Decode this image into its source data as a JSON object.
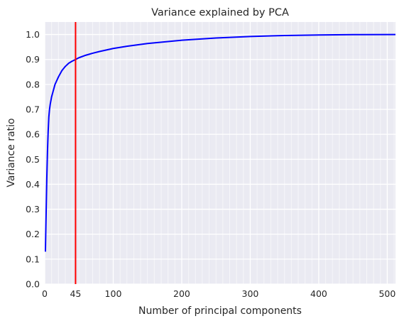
{
  "chart_data": {
    "type": "line",
    "title": "Variance explained by PCA",
    "xlabel": "Number of principal components",
    "ylabel": "Variance ratio",
    "xlim": [
      0,
      512
    ],
    "ylim": [
      0,
      1.05
    ],
    "xticks": [
      0,
      45,
      100,
      200,
      300,
      400,
      500
    ],
    "xtick_labels": [
      "0",
      "45",
      "100",
      "200",
      "300",
      "400",
      "500"
    ],
    "yticks": [
      0.0,
      0.1,
      0.2,
      0.3,
      0.4,
      0.5,
      0.6,
      0.7,
      0.8,
      0.9,
      1.0
    ],
    "ytick_labels": [
      "0.0",
      "0.1",
      "0.2",
      "0.3",
      "0.4",
      "0.5",
      "0.6",
      "0.7",
      "0.8",
      "0.9",
      "1.0"
    ],
    "grid": true,
    "background_color": "#eaeaf2",
    "series": [
      {
        "color": "#0000ff",
        "x": [
          1,
          2,
          3,
          4,
          5,
          6,
          7,
          8,
          10,
          12,
          15,
          20,
          25,
          30,
          35,
          40,
          45,
          50,
          60,
          70,
          80,
          100,
          120,
          150,
          200,
          250,
          300,
          350,
          400,
          450,
          512
        ],
        "y": [
          0.13,
          0.28,
          0.42,
          0.53,
          0.61,
          0.67,
          0.7,
          0.72,
          0.75,
          0.77,
          0.8,
          0.83,
          0.855,
          0.872,
          0.885,
          0.893,
          0.9,
          0.907,
          0.917,
          0.925,
          0.932,
          0.944,
          0.953,
          0.964,
          0.977,
          0.986,
          0.992,
          0.996,
          0.998,
          0.9995,
          1.0
        ]
      }
    ],
    "vlines": [
      {
        "x": 45,
        "color": "#ff0000"
      }
    ]
  }
}
